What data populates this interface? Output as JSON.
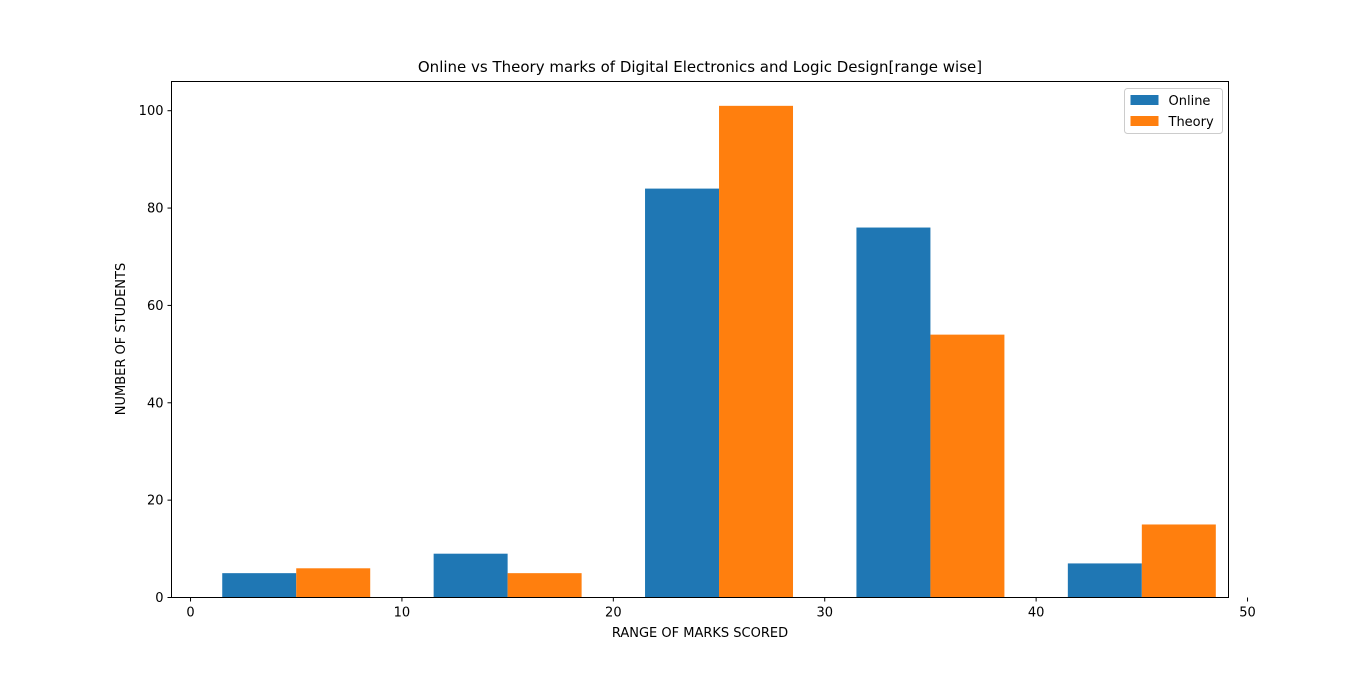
{
  "chart_data": {
    "type": "bar",
    "title": "Online vs Theory marks of Digital Electronics and Logic Design[range wise]",
    "xlabel": "RANGE OF MARKS SCORED",
    "ylabel": "NUMBER OF STUDENTS",
    "x_centers": [
      5,
      15,
      25,
      35,
      45
    ],
    "bar_width": 3.5,
    "xlim": [
      -0.9,
      49.1
    ],
    "ylim": [
      0,
      106
    ],
    "xticks": [
      0,
      10,
      20,
      30,
      40,
      50
    ],
    "yticks": [
      0,
      20,
      40,
      60,
      80,
      100
    ],
    "xtick_labels": [
      "0",
      "10",
      "20",
      "30",
      "40",
      "50"
    ],
    "ytick_labels": [
      "0",
      "20",
      "40",
      "60",
      "80",
      "100"
    ],
    "grid": false,
    "legend_position": "top-right",
    "series": [
      {
        "name": "Online",
        "color": "#1f77b4",
        "values": [
          5,
          9,
          84,
          76,
          7
        ]
      },
      {
        "name": "Theory",
        "color": "#ff7f0e",
        "values": [
          6,
          5,
          101,
          54,
          15
        ]
      }
    ]
  }
}
